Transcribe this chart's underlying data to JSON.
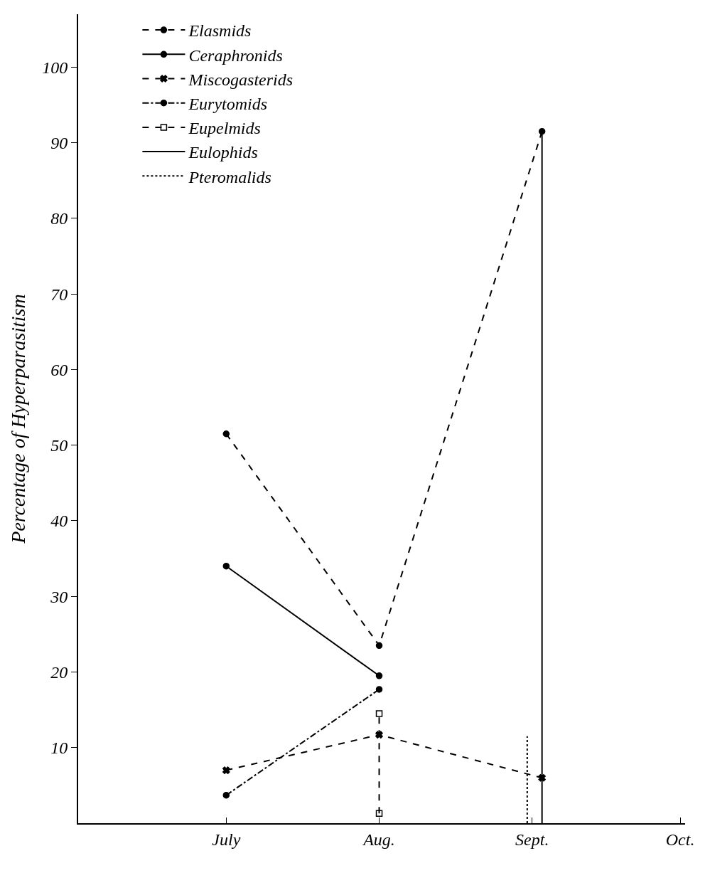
{
  "chart_data": {
    "type": "line",
    "ylabel": "Percentage of Hyperparasitism",
    "xlim": [
      "--06-01",
      "--10-02"
    ],
    "xticks": [
      {
        "value": "--07-01",
        "label": "July"
      },
      {
        "value": "--08-01",
        "label": "Aug."
      },
      {
        "value": "--09-01",
        "label": "Sept."
      },
      {
        "value": "--10-01",
        "label": "Oct."
      }
    ],
    "ylim": [
      0,
      107
    ],
    "yticks": [
      10,
      20,
      30,
      40,
      50,
      60,
      70,
      80,
      90,
      100
    ],
    "legend": "top left",
    "series": [
      {
        "name": "Elasmids",
        "color": "#000000",
        "x": [
          "--07-01",
          "--08-01",
          "--09-03"
        ],
        "values": [
          51.5,
          23.5,
          91.5
        ],
        "line_style": "dashed",
        "marker": "circle"
      },
      {
        "name": "Ceraphronids",
        "color": "#000000",
        "x": [
          "--07-01",
          "--08-01"
        ],
        "values": [
          34,
          19.5
        ],
        "line_style": "solid",
        "marker": "circle"
      },
      {
        "name": "Miscogasterids",
        "color": "#000000",
        "x": [
          "--07-01",
          "--08-01",
          "--09-03"
        ],
        "values": [
          7,
          11.7,
          6
        ],
        "line_style": "dashed",
        "marker": "cross"
      },
      {
        "name": "Eurytomids",
        "color": "#000000",
        "x": [
          "--07-01",
          "--08-01"
        ],
        "values": [
          3.7,
          17.7
        ],
        "line_style": "dashdot",
        "marker": "circle"
      },
      {
        "name": "Eupelmids",
        "color": "#000000",
        "x": [
          "--08-01",
          "--08-01"
        ],
        "values": [
          1.3,
          14.5
        ],
        "line_style": "dashed",
        "marker": "square"
      },
      {
        "name": "Eulophids",
        "color": "#000000",
        "x": [
          "--09-03",
          "--09-03"
        ],
        "values": [
          0,
          91.5
        ],
        "line_style": "solid",
        "marker": "none"
      },
      {
        "name": "Pteromalids",
        "color": "#000000",
        "x": [
          "--08-31",
          "--08-31"
        ],
        "values": [
          0,
          11.5
        ],
        "line_style": "dotted",
        "marker": "none"
      }
    ]
  }
}
